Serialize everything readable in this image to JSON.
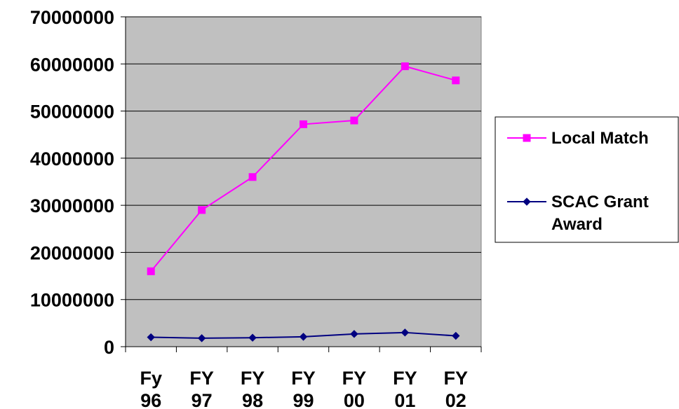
{
  "chart_data": {
    "type": "line",
    "title": "",
    "xlabel": "",
    "ylabel": "",
    "categories": [
      [
        "Fy",
        "96"
      ],
      [
        "FY",
        "97"
      ],
      [
        "FY",
        "98"
      ],
      [
        "FY",
        "99"
      ],
      [
        "FY",
        "00"
      ],
      [
        "FY",
        "01"
      ],
      [
        "FY",
        "02"
      ]
    ],
    "ylim": [
      0,
      70000000
    ],
    "yticks": [
      "0",
      "10000000",
      "20000000",
      "30000000",
      "40000000",
      "50000000",
      "60000000",
      "70000000"
    ],
    "grid": true,
    "legend_position": "right",
    "series": [
      {
        "name": "Local Match",
        "color": "#ff00ff",
        "marker": "square",
        "values": [
          16000000,
          29000000,
          36000000,
          47200000,
          48000000,
          59500000,
          56500000
        ]
      },
      {
        "name_lines": [
          "SCAC Grant",
          "Award"
        ],
        "color": "#000080",
        "marker": "diamond",
        "values": [
          2000000,
          1800000,
          1900000,
          2100000,
          2700000,
          3000000,
          2300000
        ]
      }
    ]
  }
}
